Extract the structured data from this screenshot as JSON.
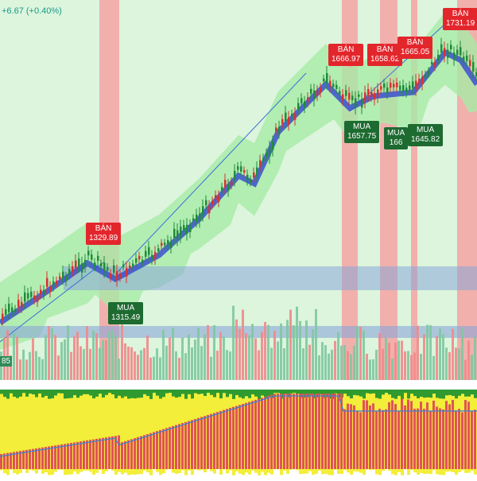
{
  "header": {
    "change": "+6.67 (+0.40%)"
  },
  "signals": [
    {
      "side": "BÁN",
      "price": "1329.89"
    },
    {
      "side": "MUA",
      "price": "1315.49"
    },
    {
      "side": "BÁN",
      "price": "1666.97"
    },
    {
      "side": "BÁN",
      "price": "1658.62"
    },
    {
      "side": "BÁN",
      "price": "1665.05"
    },
    {
      "side": "BÁN",
      "price": "1731.19"
    },
    {
      "side": "MUA",
      "price": "1657.75"
    },
    {
      "side": "MUA",
      "price": "166"
    },
    {
      "side": "MUA",
      "price": "1645.82"
    }
  ],
  "axis_label": "85"
}
